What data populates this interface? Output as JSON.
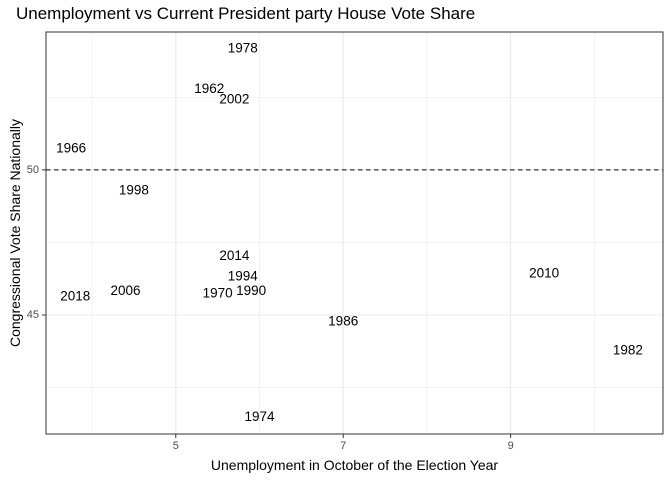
{
  "chart_data": {
    "type": "scatter",
    "title": "Unemployment vs Current President party House Vote Share",
    "xlabel": "Unemployment in October of the Election Year",
    "ylabel": "Congressional Vote Share Nationally",
    "xlim": [
      3.45,
      10.82
    ],
    "ylim": [
      40.9,
      54.75
    ],
    "x_ticks": [
      5,
      7,
      9
    ],
    "y_ticks": [
      45,
      50
    ],
    "x_minor_grid": [
      4,
      6,
      8,
      10
    ],
    "y_minor_grid": [
      42.5,
      47.5,
      52.5
    ],
    "grid": true,
    "reference_line": {
      "axis": "y",
      "value": 50,
      "style": "dashed"
    },
    "marker": "text labels",
    "points": [
      {
        "label": "1978",
        "x": 5.8,
        "y": 54.2
      },
      {
        "label": "1962",
        "x": 5.4,
        "y": 52.8
      },
      {
        "label": "2002",
        "x": 5.7,
        "y": 52.45
      },
      {
        "label": "1966",
        "x": 3.75,
        "y": 50.75
      },
      {
        "label": "1998",
        "x": 4.5,
        "y": 49.3
      },
      {
        "label": "2014",
        "x": 5.7,
        "y": 47.05
      },
      {
        "label": "1994",
        "x": 5.8,
        "y": 46.35
      },
      {
        "label": "2010",
        "x": 9.4,
        "y": 46.45
      },
      {
        "label": "2006",
        "x": 4.4,
        "y": 45.85
      },
      {
        "label": "1990",
        "x": 5.9,
        "y": 45.85
      },
      {
        "label": "1970",
        "x": 5.5,
        "y": 45.75
      },
      {
        "label": "2018",
        "x": 3.8,
        "y": 45.65
      },
      {
        "label": "1986",
        "x": 7.0,
        "y": 44.8
      },
      {
        "label": "1982",
        "x": 10.4,
        "y": 43.8
      },
      {
        "label": "1974",
        "x": 6.0,
        "y": 41.5
      }
    ]
  }
}
